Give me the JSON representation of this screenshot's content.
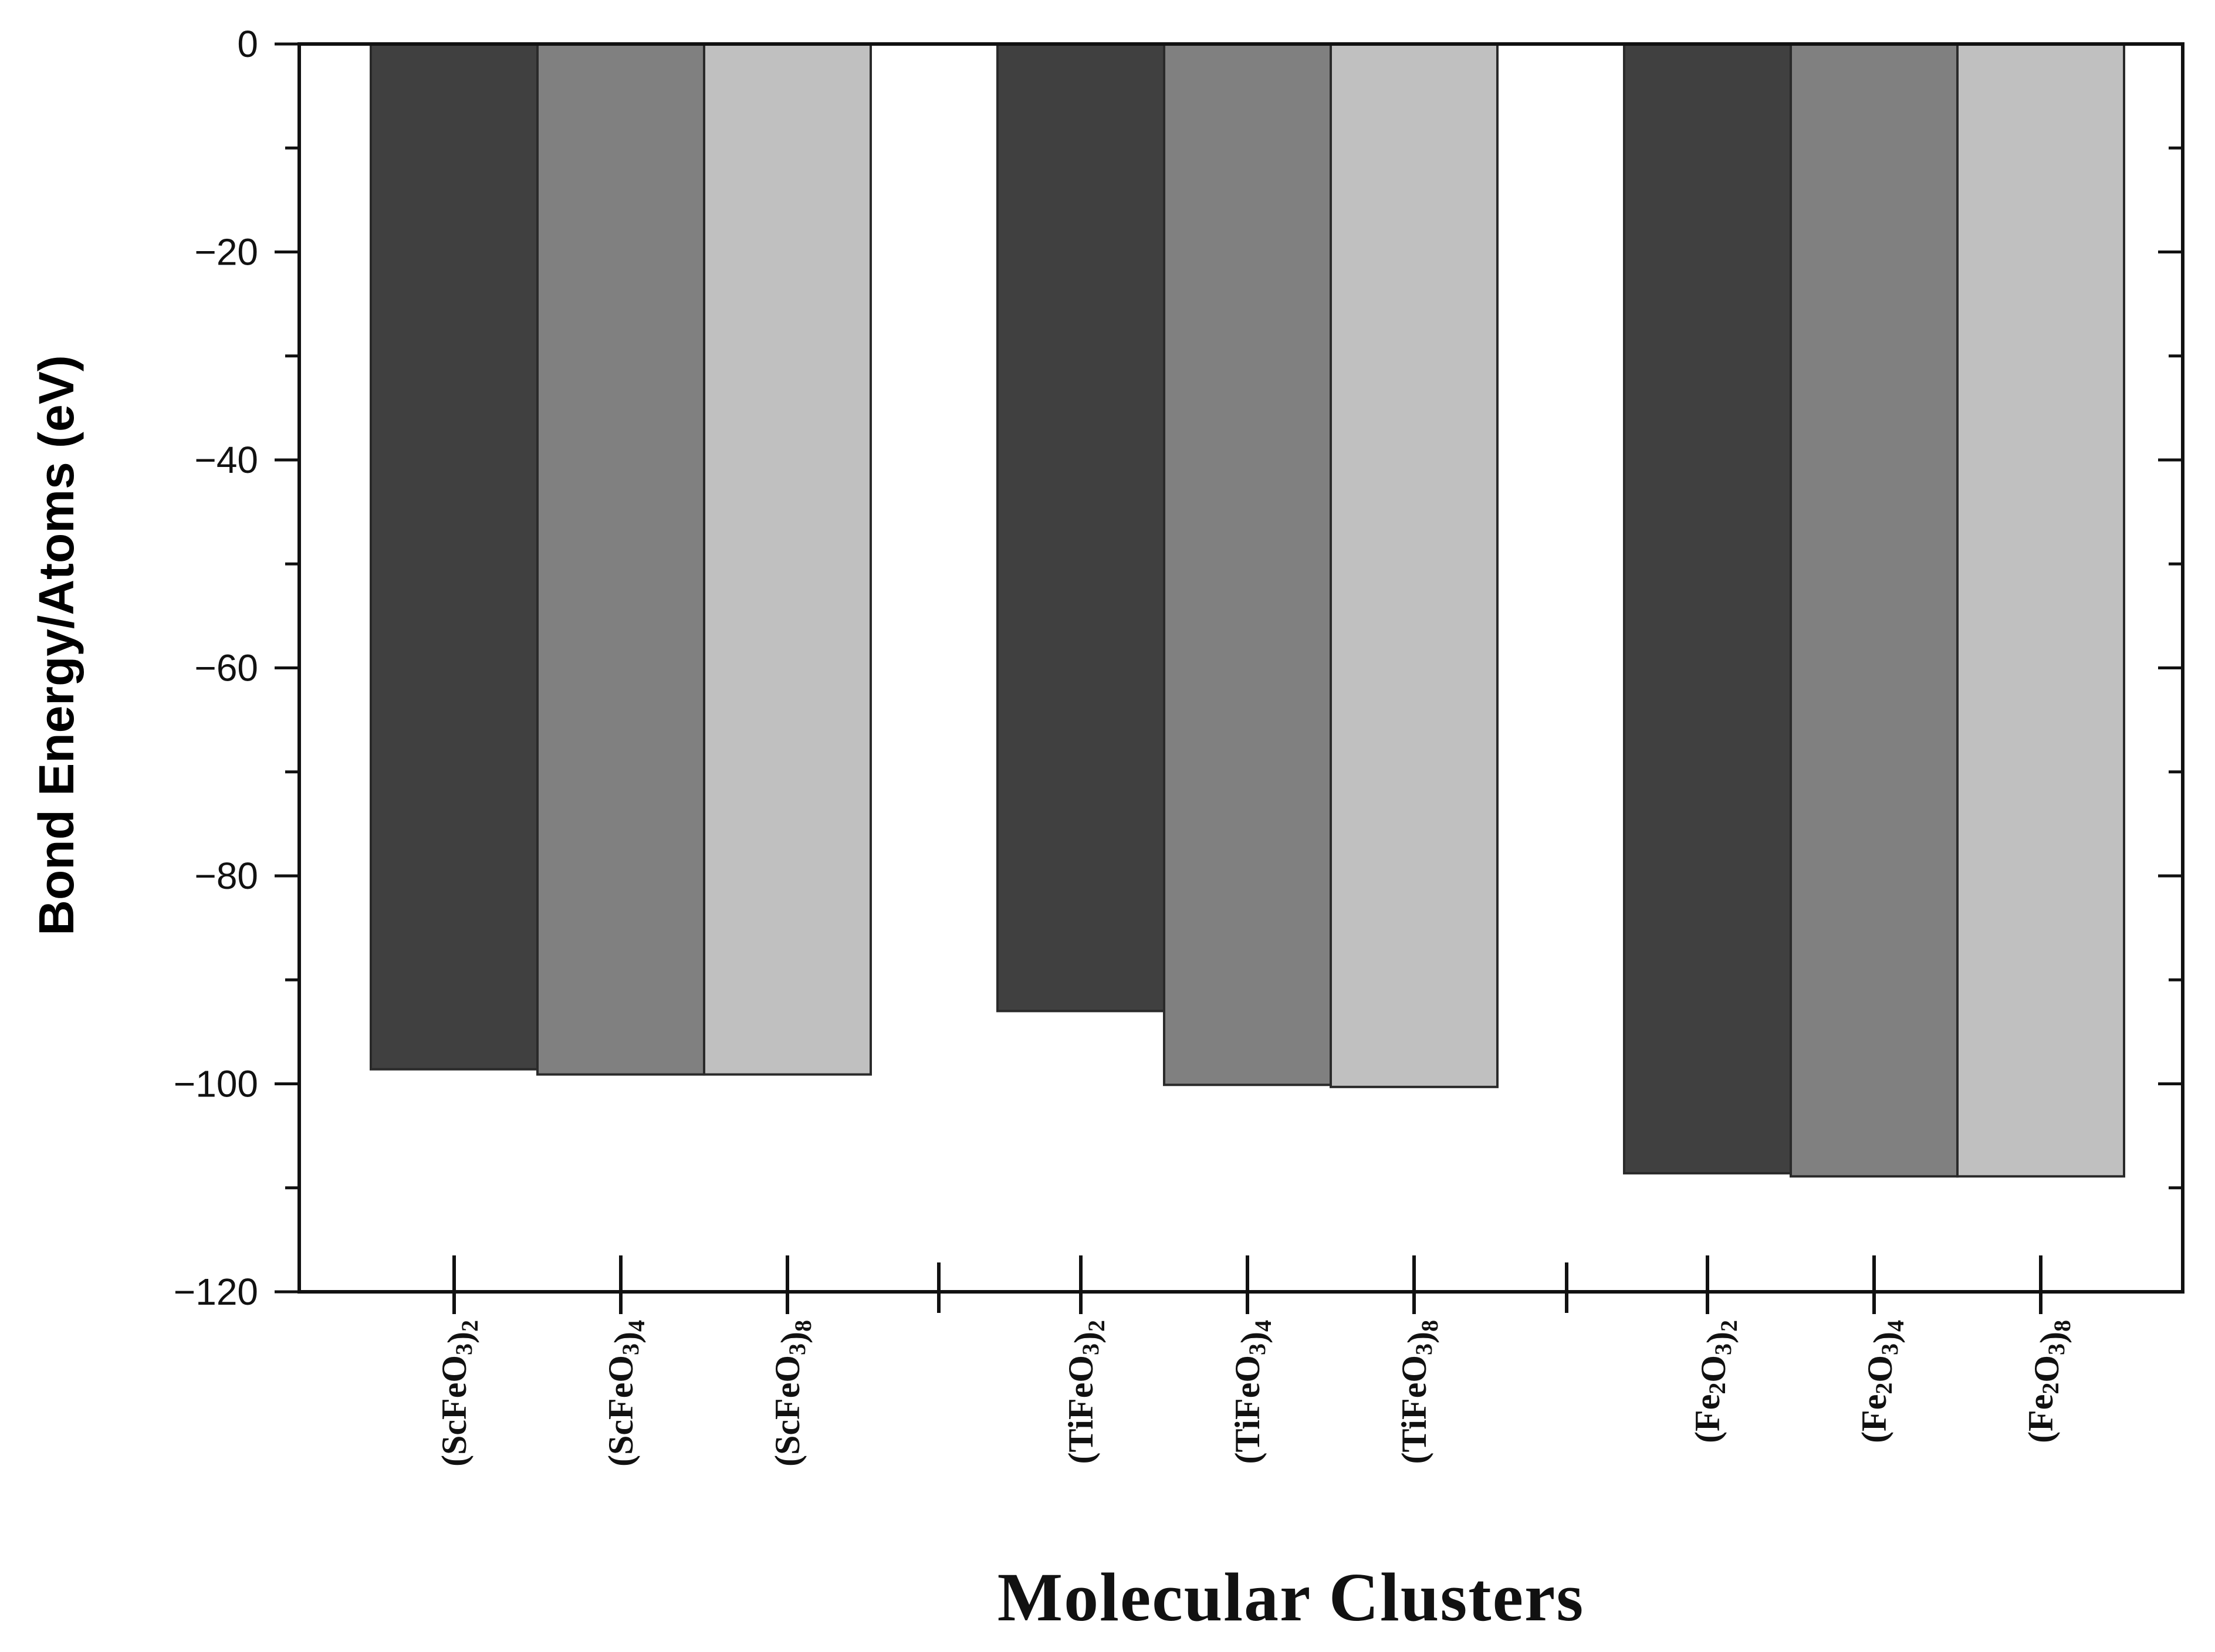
{
  "chart_data": {
    "type": "bar",
    "xlabel": "Molecular Clusters",
    "ylabel": "Bond Energy/Atoms (eV)",
    "ylim": [
      -120,
      0
    ],
    "yticks": [
      0,
      -20,
      -40,
      -60,
      -80,
      -100,
      -120
    ],
    "ytick_labels": [
      "0",
      "−20",
      "−40",
      "−60",
      "−80",
      "−100",
      "−120"
    ],
    "grid": false,
    "groups": [
      {
        "bars": [
          {
            "label": {
              "pre": "(ScFeO",
              "s1": "3",
              "mid": ")",
              "s2": "2"
            },
            "value": -98.6,
            "color": "#404040"
          },
          {
            "label": {
              "pre": "(ScFeO",
              "s1": "3",
              "mid": ")",
              "s2": "4"
            },
            "value": -99.1,
            "color": "#808080"
          },
          {
            "label": {
              "pre": "(ScFeO",
              "s1": "3",
              "mid": ")",
              "s2": "8"
            },
            "value": -99.1,
            "color": "#c0c0c0"
          }
        ]
      },
      {
        "bars": [
          {
            "label": {
              "pre": "(TiFeO",
              "s1": "3",
              "mid": ")",
              "s2": "2"
            },
            "value": -93.0,
            "color": "#404040"
          },
          {
            "label": {
              "pre": "(TiFeO",
              "s1": "3",
              "mid": ")",
              "s2": "4"
            },
            "value": -100.1,
            "color": "#808080"
          },
          {
            "label": {
              "pre": "(TiFeO",
              "s1": "3",
              "mid": ")",
              "s2": "8"
            },
            "value": -100.3,
            "color": "#c0c0c0"
          }
        ]
      },
      {
        "bars": [
          {
            "label": {
              "pre": "(Fe",
              "s1": "2",
              "mid": "O",
              "s2": "3",
              "post": ")",
              "s3": "2"
            },
            "value": -108.6,
            "color": "#404040"
          },
          {
            "label": {
              "pre": "(Fe",
              "s1": "2",
              "mid": "O",
              "s2": "3",
              "post": ")",
              "s3": "4"
            },
            "value": -108.9,
            "color": "#808080"
          },
          {
            "label": {
              "pre": "(Fe",
              "s1": "2",
              "mid": "O",
              "s2": "3",
              "post": ")",
              "s3": "8"
            },
            "value": -108.9,
            "color": "#c0c0c0"
          }
        ]
      }
    ]
  }
}
